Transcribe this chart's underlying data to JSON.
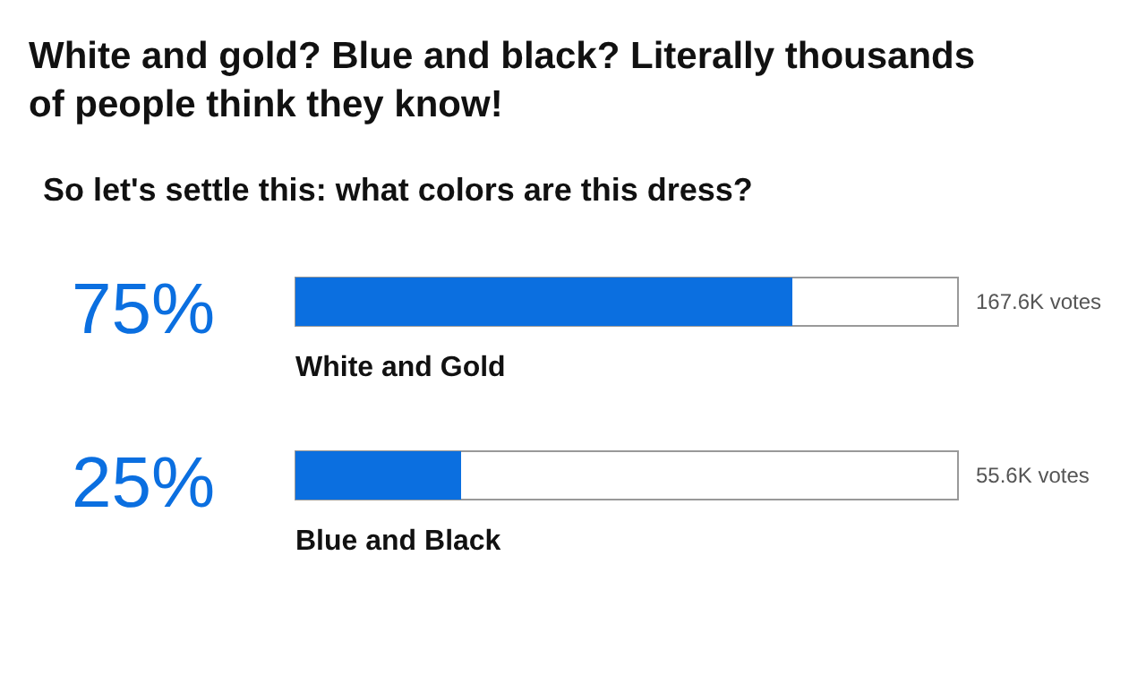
{
  "chart_data": {
    "type": "bar",
    "orientation": "horizontal",
    "title": "White and gold? Blue and black? Literally thousands of people think they know!",
    "subtitle": "So let's settle this: what colors are this dress?",
    "categories": [
      "White and Gold",
      "Blue and Black"
    ],
    "values": [
      75,
      25
    ],
    "color": "#0b6fe0",
    "value_labels": [
      "75%",
      "25%"
    ],
    "xlim": [
      0,
      100
    ],
    "annotations": [
      "167.6K votes",
      "55.6K votes"
    ]
  }
}
